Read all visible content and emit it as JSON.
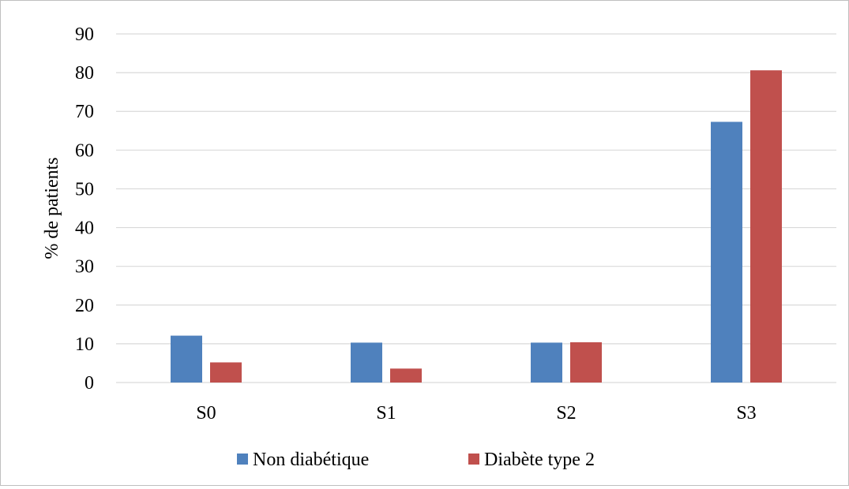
{
  "chart_data": {
    "type": "bar",
    "title": "",
    "xlabel": "",
    "ylabel": "% de patients",
    "ylim": [
      0,
      90
    ],
    "yticks": [
      0,
      10,
      20,
      30,
      40,
      50,
      60,
      70,
      80,
      90
    ],
    "grid": true,
    "legend_position": "bottom",
    "categories": [
      "S0",
      "S1",
      "S2",
      "S3"
    ],
    "series": [
      {
        "name": "Non diabétique",
        "color": "#4f81bd",
        "values": [
          12.1,
          10.3,
          10.3,
          67.3
        ]
      },
      {
        "name": "Diabète type 2",
        "color": "#c0504d",
        "values": [
          5.2,
          3.6,
          10.4,
          80.6
        ]
      }
    ]
  }
}
